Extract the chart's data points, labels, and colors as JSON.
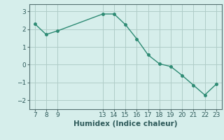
{
  "xlabel": "Humidex (Indice chaleur)",
  "x": [
    7,
    8,
    9,
    13,
    14,
    15,
    16,
    17,
    18,
    19,
    20,
    21,
    22,
    23
  ],
  "y": [
    2.3,
    1.7,
    1.9,
    2.85,
    2.85,
    2.25,
    1.45,
    0.55,
    0.05,
    -0.1,
    -0.6,
    -1.15,
    -1.7,
    -1.1
  ],
  "line_color": "#2e8b74",
  "marker": "o",
  "marker_size": 2.5,
  "bg_color": "#d6eeeb",
  "grid_color": "#b0ccc8",
  "xlim": [
    6.5,
    23.5
  ],
  "ylim": [
    -2.5,
    3.4
  ],
  "yticks": [
    -2,
    -1,
    0,
    1,
    2,
    3
  ],
  "xticks": [
    7,
    8,
    9,
    13,
    14,
    15,
    16,
    17,
    18,
    19,
    20,
    21,
    22,
    23
  ],
  "tick_labelsize": 6.5,
  "xlabel_fontsize": 7.5,
  "line_width": 1.0
}
